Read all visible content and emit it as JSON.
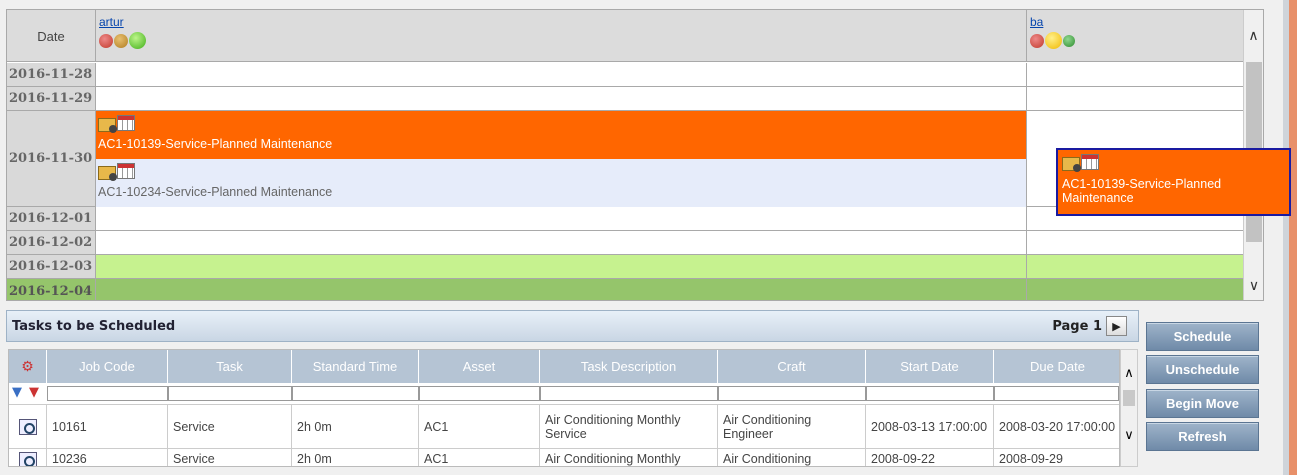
{
  "calendar": {
    "date_header": "Date",
    "users": [
      {
        "name": "artur",
        "lights": [
          "#c0392b",
          "#c49a2a",
          "#52c41a"
        ]
      },
      {
        "name": "ba",
        "lights": [
          "#c0392b",
          "#f5c518",
          "#3ea53e"
        ]
      }
    ],
    "dates": [
      "2016-11-28",
      "2016-11-29",
      "2016-11-30",
      "2016-12-01",
      "2016-12-02",
      "2016-12-03",
      "2016-12-04"
    ],
    "scheduled": [
      {
        "title": "AC1-10139-Service-Planned Maintenance",
        "color": "#ff6600"
      },
      {
        "title": "AC1-10234-Service-Planned Maintenance",
        "color": "#e6ecfa"
      }
    ],
    "dragging": {
      "title": "AC1-10139-Service-Planned Maintenance"
    },
    "weekend_colors": [
      "#c6f28f",
      "#95c56b"
    ]
  },
  "tasks_panel": {
    "title": "Tasks to be Scheduled",
    "page_label": "Page 1",
    "next_icon": "chevron-right-icon",
    "columns": [
      "Job Code",
      "Task",
      "Standard Time",
      "Asset",
      "Task Description",
      "Craft",
      "Start Date",
      "Due Date"
    ],
    "rows": [
      {
        "job_code": "10161",
        "task": "Service",
        "std_time": "2h 0m",
        "asset": "AC1",
        "description": "Air Conditioning Monthly Service",
        "craft": "Air Conditioning Engineer",
        "start": "2008-03-13 17:00:00",
        "due": "2008-03-20 17:00:00"
      },
      {
        "job_code": "10236",
        "task": "Service",
        "std_time": "2h 0m",
        "asset": "AC1",
        "description": "Air Conditioning Monthly",
        "craft": "Air Conditioning",
        "start": "2008-09-22",
        "due": "2008-09-29"
      }
    ]
  },
  "buttons": {
    "schedule": "Schedule",
    "unschedule": "Unschedule",
    "begin_move": "Begin Move",
    "refresh": "Refresh"
  }
}
